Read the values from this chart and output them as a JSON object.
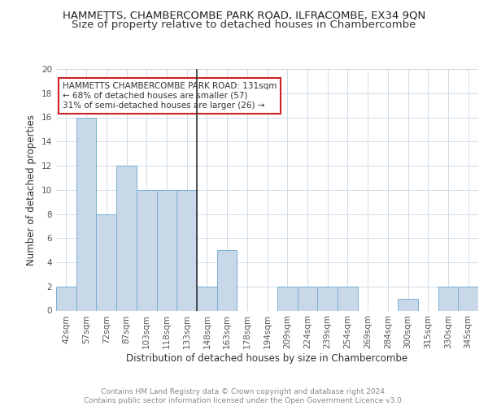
{
  "title1": "HAMMETTS, CHAMBERCOMBE PARK ROAD, ILFRACOMBE, EX34 9QN",
  "title2": "Size of property relative to detached houses in Chambercombe",
  "xlabel": "Distribution of detached houses by size in Chambercombe",
  "ylabel": "Number of detached properties",
  "categories": [
    "42sqm",
    "57sqm",
    "72sqm",
    "87sqm",
    "103sqm",
    "118sqm",
    "133sqm",
    "148sqm",
    "163sqm",
    "178sqm",
    "194sqm",
    "209sqm",
    "224sqm",
    "239sqm",
    "254sqm",
    "269sqm",
    "284sqm",
    "300sqm",
    "315sqm",
    "330sqm",
    "345sqm"
  ],
  "values": [
    2,
    16,
    8,
    12,
    10,
    10,
    10,
    2,
    5,
    0,
    0,
    2,
    2,
    2,
    2,
    0,
    0,
    1,
    0,
    2,
    2
  ],
  "bar_color": "#c8d8e8",
  "bar_edge_color": "#7aafd4",
  "highlight_index": 6,
  "highlight_line_color": "#333333",
  "annotation_text": "HAMMETTS CHAMBERCOMBE PARK ROAD: 131sqm\n← 68% of detached houses are smaller (57)\n31% of semi-detached houses are larger (26) →",
  "annotation_box_color": "#ffffff",
  "annotation_box_edge_color": "#cc2222",
  "ylim": [
    0,
    20
  ],
  "yticks": [
    0,
    2,
    4,
    6,
    8,
    10,
    12,
    14,
    16,
    18,
    20
  ],
  "grid_color": "#d0dce8",
  "background_color": "#ffffff",
  "footer_text": "Contains HM Land Registry data © Crown copyright and database right 2024.\nContains public sector information licensed under the Open Government Licence v3.0.",
  "title1_fontsize": 9.5,
  "title2_fontsize": 9.5,
  "xlabel_fontsize": 8.5,
  "ylabel_fontsize": 8.5,
  "tick_fontsize": 7.5,
  "annotation_fontsize": 7.5,
  "footer_fontsize": 6.5
}
